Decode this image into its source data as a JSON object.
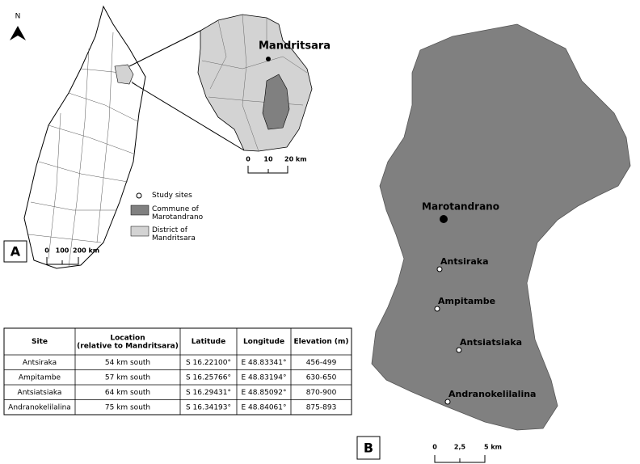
{
  "north_label": "N",
  "panel_a": {
    "label": "A",
    "inset_label": "Mandritsara",
    "inset_scale": [
      "0",
      "10",
      "20 km"
    ],
    "scale": [
      "0",
      "100",
      "200 km"
    ],
    "legend": [
      "Study sites",
      "Commune of Marotandrano",
      "District of Mandritsara"
    ]
  },
  "table": {
    "header": [
      "Site",
      "Location (relative to Mandritsara)",
      "Latitude",
      "Longitude",
      "Elevation (m)"
    ],
    "rows": [
      [
        "Antsiraka",
        "54 km south",
        "S 16.22100°",
        "E 48.83341°",
        "456-499"
      ],
      [
        "Ampitambe",
        "57 km south",
        "S 16.25766°",
        "E 48.83194°",
        "630-650"
      ],
      [
        "Antsiatsiaka",
        "64 km south",
        "S 16.29431°",
        "E 48.85092°",
        "870-900"
      ],
      [
        "Andranokelilalina",
        "75 km south",
        "S 16.34193°",
        "E 48.84061°",
        "875-893"
      ]
    ]
  },
  "panel_b": {
    "label": "B",
    "commune": "Marotandrano",
    "sites": [
      "Antsiraka",
      "Ampitambe",
      "Antsiatsiaka",
      "Andranokelilalina"
    ],
    "scale": [
      "0",
      "2,5",
      "5 km"
    ]
  }
}
